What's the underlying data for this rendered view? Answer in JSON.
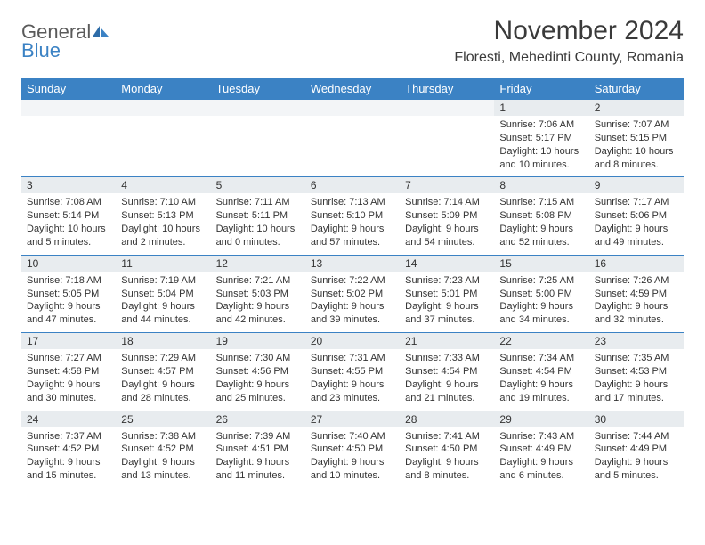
{
  "logo": {
    "general": "General",
    "blue": "Blue"
  },
  "title": "November 2024",
  "location": "Floresti, Mehedinti County, Romania",
  "colors": {
    "header_bg": "#3b82c4",
    "header_text": "#ffffff",
    "daynum_bg": "#e8ecef",
    "row_border": "#3b82c4",
    "text": "#333333",
    "logo_gray": "#5a5a5a",
    "logo_blue": "#3b82c4"
  },
  "day_headers": [
    "Sunday",
    "Monday",
    "Tuesday",
    "Wednesday",
    "Thursday",
    "Friday",
    "Saturday"
  ],
  "weeks": [
    [
      null,
      null,
      null,
      null,
      null,
      {
        "n": "1",
        "sr": "7:06 AM",
        "ss": "5:17 PM",
        "dl": "10 hours and 10 minutes."
      },
      {
        "n": "2",
        "sr": "7:07 AM",
        "ss": "5:15 PM",
        "dl": "10 hours and 8 minutes."
      }
    ],
    [
      {
        "n": "3",
        "sr": "7:08 AM",
        "ss": "5:14 PM",
        "dl": "10 hours and 5 minutes."
      },
      {
        "n": "4",
        "sr": "7:10 AM",
        "ss": "5:13 PM",
        "dl": "10 hours and 2 minutes."
      },
      {
        "n": "5",
        "sr": "7:11 AM",
        "ss": "5:11 PM",
        "dl": "10 hours and 0 minutes."
      },
      {
        "n": "6",
        "sr": "7:13 AM",
        "ss": "5:10 PM",
        "dl": "9 hours and 57 minutes."
      },
      {
        "n": "7",
        "sr": "7:14 AM",
        "ss": "5:09 PM",
        "dl": "9 hours and 54 minutes."
      },
      {
        "n": "8",
        "sr": "7:15 AM",
        "ss": "5:08 PM",
        "dl": "9 hours and 52 minutes."
      },
      {
        "n": "9",
        "sr": "7:17 AM",
        "ss": "5:06 PM",
        "dl": "9 hours and 49 minutes."
      }
    ],
    [
      {
        "n": "10",
        "sr": "7:18 AM",
        "ss": "5:05 PM",
        "dl": "9 hours and 47 minutes."
      },
      {
        "n": "11",
        "sr": "7:19 AM",
        "ss": "5:04 PM",
        "dl": "9 hours and 44 minutes."
      },
      {
        "n": "12",
        "sr": "7:21 AM",
        "ss": "5:03 PM",
        "dl": "9 hours and 42 minutes."
      },
      {
        "n": "13",
        "sr": "7:22 AM",
        "ss": "5:02 PM",
        "dl": "9 hours and 39 minutes."
      },
      {
        "n": "14",
        "sr": "7:23 AM",
        "ss": "5:01 PM",
        "dl": "9 hours and 37 minutes."
      },
      {
        "n": "15",
        "sr": "7:25 AM",
        "ss": "5:00 PM",
        "dl": "9 hours and 34 minutes."
      },
      {
        "n": "16",
        "sr": "7:26 AM",
        "ss": "4:59 PM",
        "dl": "9 hours and 32 minutes."
      }
    ],
    [
      {
        "n": "17",
        "sr": "7:27 AM",
        "ss": "4:58 PM",
        "dl": "9 hours and 30 minutes."
      },
      {
        "n": "18",
        "sr": "7:29 AM",
        "ss": "4:57 PM",
        "dl": "9 hours and 28 minutes."
      },
      {
        "n": "19",
        "sr": "7:30 AM",
        "ss": "4:56 PM",
        "dl": "9 hours and 25 minutes."
      },
      {
        "n": "20",
        "sr": "7:31 AM",
        "ss": "4:55 PM",
        "dl": "9 hours and 23 minutes."
      },
      {
        "n": "21",
        "sr": "7:33 AM",
        "ss": "4:54 PM",
        "dl": "9 hours and 21 minutes."
      },
      {
        "n": "22",
        "sr": "7:34 AM",
        "ss": "4:54 PM",
        "dl": "9 hours and 19 minutes."
      },
      {
        "n": "23",
        "sr": "7:35 AM",
        "ss": "4:53 PM",
        "dl": "9 hours and 17 minutes."
      }
    ],
    [
      {
        "n": "24",
        "sr": "7:37 AM",
        "ss": "4:52 PM",
        "dl": "9 hours and 15 minutes."
      },
      {
        "n": "25",
        "sr": "7:38 AM",
        "ss": "4:52 PM",
        "dl": "9 hours and 13 minutes."
      },
      {
        "n": "26",
        "sr": "7:39 AM",
        "ss": "4:51 PM",
        "dl": "9 hours and 11 minutes."
      },
      {
        "n": "27",
        "sr": "7:40 AM",
        "ss": "4:50 PM",
        "dl": "9 hours and 10 minutes."
      },
      {
        "n": "28",
        "sr": "7:41 AM",
        "ss": "4:50 PM",
        "dl": "9 hours and 8 minutes."
      },
      {
        "n": "29",
        "sr": "7:43 AM",
        "ss": "4:49 PM",
        "dl": "9 hours and 6 minutes."
      },
      {
        "n": "30",
        "sr": "7:44 AM",
        "ss": "4:49 PM",
        "dl": "9 hours and 5 minutes."
      }
    ]
  ],
  "labels": {
    "sunrise": "Sunrise: ",
    "sunset": "Sunset: ",
    "daylight": "Daylight: "
  }
}
